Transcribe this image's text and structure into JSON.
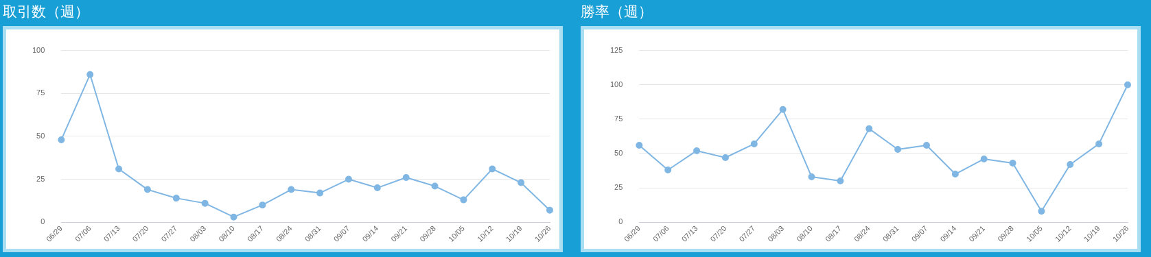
{
  "chart_data": [
    {
      "type": "line",
      "title": "取引数（週）",
      "categories": [
        "06/29",
        "07/06",
        "07/13",
        "07/20",
        "07/27",
        "08/03",
        "08/10",
        "08/17",
        "08/24",
        "08/31",
        "09/07",
        "09/14",
        "09/21",
        "09/28",
        "10/05",
        "10/12",
        "10/19",
        "10/26"
      ],
      "series": [
        {
          "color": "#7fb6e3",
          "values": [
            48,
            86,
            31,
            19,
            14,
            11,
            3,
            10,
            19,
            17,
            25,
            20,
            26,
            21,
            13,
            31,
            23,
            7
          ]
        }
      ],
      "ylim": [
        0,
        100
      ],
      "yticks": [
        0,
        25,
        50,
        75,
        100
      ],
      "grid": "y",
      "legend": false,
      "marker": "circle",
      "line_style": "solid"
    },
    {
      "type": "line",
      "title": "勝率（週）",
      "categories": [
        "06/29",
        "07/06",
        "07/13",
        "07/20",
        "07/27",
        "08/03",
        "08/10",
        "08/17",
        "08/24",
        "08/31",
        "09/07",
        "09/14",
        "09/21",
        "09/28",
        "10/05",
        "10/12",
        "10/19",
        "10/26"
      ],
      "series": [
        {
          "color": "#7fb6e3",
          "values": [
            56,
            38,
            52,
            47,
            57,
            82,
            33,
            30,
            68,
            53,
            56,
            35,
            46,
            43,
            8,
            42,
            57,
            100
          ]
        }
      ],
      "ylim": [
        0,
        125
      ],
      "yticks": [
        0,
        25,
        50,
        75,
        100,
        125
      ],
      "grid": "y",
      "legend": false,
      "marker": "circle",
      "line_style": "solid"
    }
  ]
}
